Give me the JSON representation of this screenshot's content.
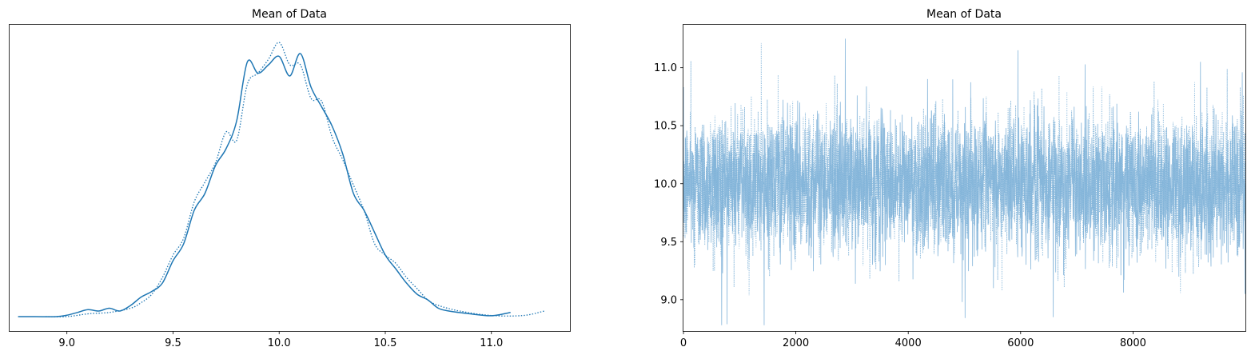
{
  "figure": {
    "left_title": "Mean of Data",
    "right_title": "Mean of Data"
  },
  "chart_data": [
    {
      "type": "area",
      "kind": "kde",
      "title": "Mean of Data",
      "xlim": [
        8.73,
        11.37
      ],
      "ylim": [
        0,
        1
      ],
      "yticks_shown": false,
      "xticks": [
        "9.0",
        "9.5",
        "10.0",
        "10.5",
        "11.0"
      ],
      "series": [
        {
          "style": "solid",
          "color": "#1f77b4",
          "x": [
            8.77,
            8.85,
            8.95,
            9.0,
            9.05,
            9.1,
            9.15,
            9.2,
            9.25,
            9.3,
            9.35,
            9.4,
            9.45,
            9.5,
            9.55,
            9.6,
            9.65,
            9.7,
            9.75,
            9.8,
            9.85,
            9.9,
            9.95,
            10.0,
            10.05,
            10.1,
            10.15,
            10.2,
            10.25,
            10.3,
            10.35,
            10.4,
            10.45,
            10.5,
            10.55,
            10.6,
            10.65,
            10.7,
            10.75,
            10.8,
            10.9,
            11.0,
            11.09
          ],
          "y": [
            0.0,
            0.0,
            0.0,
            0.005,
            0.015,
            0.025,
            0.02,
            0.03,
            0.02,
            0.04,
            0.07,
            0.09,
            0.12,
            0.2,
            0.26,
            0.38,
            0.44,
            0.54,
            0.6,
            0.7,
            0.91,
            0.87,
            0.9,
            0.93,
            0.86,
            0.94,
            0.82,
            0.75,
            0.68,
            0.58,
            0.44,
            0.38,
            0.3,
            0.22,
            0.17,
            0.12,
            0.08,
            0.06,
            0.03,
            0.02,
            0.01,
            0.003,
            0.015
          ]
        },
        {
          "style": "dotted",
          "color": "#1f77b4",
          "x": [
            8.9,
            9.0,
            9.1,
            9.2,
            9.3,
            9.35,
            9.4,
            9.45,
            9.5,
            9.55,
            9.6,
            9.65,
            9.7,
            9.75,
            9.8,
            9.85,
            9.9,
            9.95,
            10.0,
            10.05,
            10.1,
            10.15,
            10.2,
            10.25,
            10.3,
            10.35,
            10.4,
            10.45,
            10.5,
            10.55,
            10.6,
            10.65,
            10.7,
            10.75,
            10.85,
            11.0,
            11.15,
            11.25
          ],
          "y": [
            0.0,
            0.0,
            0.01,
            0.015,
            0.03,
            0.05,
            0.08,
            0.14,
            0.22,
            0.28,
            0.41,
            0.48,
            0.55,
            0.66,
            0.63,
            0.83,
            0.87,
            0.92,
            0.98,
            0.9,
            0.9,
            0.78,
            0.77,
            0.64,
            0.56,
            0.47,
            0.38,
            0.26,
            0.22,
            0.19,
            0.14,
            0.1,
            0.06,
            0.04,
            0.02,
            0.004,
            0.004,
            0.02
          ]
        }
      ]
    },
    {
      "type": "line",
      "kind": "trace",
      "title": "Mean of Data",
      "xlim": [
        0,
        10000
      ],
      "ylim": [
        8.73,
        11.37
      ],
      "xticks": [
        "0",
        "2000",
        "4000",
        "6000",
        "8000"
      ],
      "yticks": [
        "9.0",
        "9.5",
        "10.0",
        "10.5",
        "11.0"
      ],
      "n_draws": 10000,
      "center": 10.0,
      "spread_sd": 0.3,
      "series": [
        {
          "style": "solid",
          "color": "#7fb2d8"
        },
        {
          "style": "dotted",
          "color": "#7fb2d8"
        }
      ],
      "extremes": [
        {
          "x": 680,
          "y": 8.76
        },
        {
          "x": 2880,
          "y": 11.25
        },
        {
          "x": 6580,
          "y": 8.85
        },
        {
          "x": 5950,
          "y": 11.15
        },
        {
          "x": 4960,
          "y": 8.98
        },
        {
          "x": 9200,
          "y": 11.05
        },
        {
          "x": 9990,
          "y": 9.05
        }
      ]
    }
  ]
}
